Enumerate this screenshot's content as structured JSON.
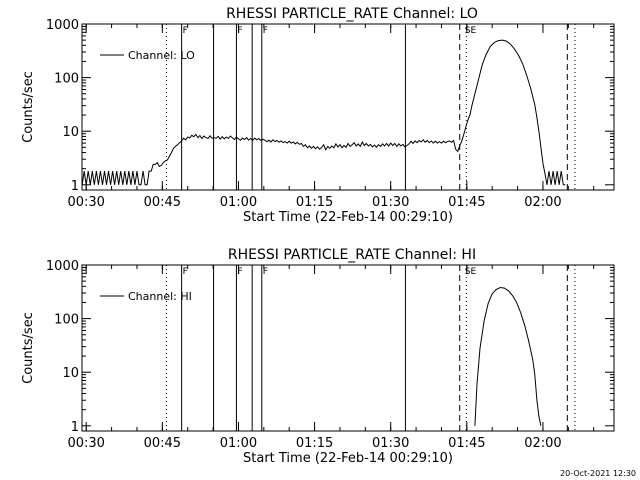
{
  "footer": {
    "timestamp": "20-Oct-2021 12:30"
  },
  "chart_data": [
    {
      "type": "line",
      "title": "RHESSI PARTICLE_RATE Channel: LO",
      "xlabel": "Start Time (22-Feb-14 00:29:10)",
      "ylabel": "Counts/sec",
      "yscale": "log",
      "xlim": [
        29.17,
        134.0
      ],
      "ylim": [
        0.8,
        1000
      ],
      "x_ticks": [
        30,
        45,
        60,
        75,
        90,
        105,
        120
      ],
      "x_tick_labels": [
        "00:30",
        "00:45",
        "01:00",
        "01:15",
        "01:30",
        "01:45",
        "02:00"
      ],
      "y_ticks": [
        1,
        10,
        100,
        1000
      ],
      "y_tick_labels": [
        "1",
        "10",
        "100",
        "1000"
      ],
      "legend": {
        "position": "top-left",
        "entries": [
          "Channel: LO"
        ]
      },
      "markers": {
        "solid": [
          48.8,
          55.1,
          59.6,
          62.7,
          64.6,
          92.9
        ],
        "dotted": [
          45.8,
          104.9,
          126.3
        ],
        "dashed": [
          103.6,
          124.8
        ],
        "labels": [
          {
            "x": 48.8,
            "text": "F"
          },
          {
            "x": 59.6,
            "text": "F"
          },
          {
            "x": 64.6,
            "text": "F"
          },
          {
            "x": 104.4,
            "text": "SE"
          }
        ]
      },
      "series": [
        {
          "name": "Channel: LO",
          "points": [
            [
              29.2,
              1
            ],
            [
              29.6,
              1.8
            ],
            [
              30.0,
              1
            ],
            [
              30.4,
              1.8
            ],
            [
              30.8,
              1
            ],
            [
              31.2,
              1.8
            ],
            [
              31.6,
              1
            ],
            [
              32.0,
              1.8
            ],
            [
              32.4,
              1
            ],
            [
              32.8,
              1.8
            ],
            [
              33.2,
              1
            ],
            [
              33.6,
              1.8
            ],
            [
              34.0,
              1
            ],
            [
              34.4,
              1.8
            ],
            [
              34.8,
              1
            ],
            [
              35.2,
              1.8
            ],
            [
              35.6,
              1
            ],
            [
              36.0,
              1.8
            ],
            [
              36.4,
              1
            ],
            [
              36.8,
              1.8
            ],
            [
              37.2,
              1
            ],
            [
              37.6,
              1.8
            ],
            [
              38.0,
              1
            ],
            [
              38.4,
              1.8
            ],
            [
              38.8,
              1
            ],
            [
              39.2,
              1.8
            ],
            [
              39.6,
              1
            ],
            [
              40.0,
              1.8
            ],
            [
              40.4,
              1
            ],
            [
              40.8,
              1
            ],
            [
              41.2,
              1.8
            ],
            [
              41.6,
              1
            ],
            [
              42.0,
              1
            ],
            [
              42.4,
              1.8
            ],
            [
              42.8,
              1.8
            ],
            [
              43.2,
              2.4
            ],
            [
              43.6,
              2.4
            ],
            [
              44.0,
              2.6
            ],
            [
              44.4,
              2.2
            ],
            [
              44.8,
              2.3
            ],
            [
              45.2,
              2.6
            ],
            [
              45.6,
              2.8
            ],
            [
              46.0,
              2.9
            ],
            [
              46.4,
              3.4
            ],
            [
              46.8,
              4.0
            ],
            [
              47.2,
              4.8
            ],
            [
              47.6,
              5.2
            ],
            [
              48.0,
              5.6
            ],
            [
              48.4,
              6.1
            ],
            [
              48.8,
              6.6
            ],
            [
              49.2,
              7.4
            ],
            [
              49.6,
              6.9
            ],
            [
              50.0,
              7.8
            ],
            [
              50.4,
              7.5
            ],
            [
              50.8,
              8.4
            ],
            [
              51.2,
              7.9
            ],
            [
              51.6,
              8.7
            ],
            [
              52.0,
              7.6
            ],
            [
              52.4,
              8.3
            ],
            [
              52.8,
              7.3
            ],
            [
              53.2,
              8.1
            ],
            [
              53.6,
              7.6
            ],
            [
              54.0,
              7.3
            ],
            [
              54.4,
              8.2
            ],
            [
              54.8,
              7.4
            ],
            [
              55.2,
              7.6
            ],
            [
              55.6,
              7.4
            ],
            [
              56.0,
              8.0
            ],
            [
              56.4,
              7.1
            ],
            [
              56.8,
              7.9
            ],
            [
              57.2,
              7.2
            ],
            [
              57.6,
              7.8
            ],
            [
              58.0,
              7.3
            ],
            [
              58.4,
              8.1
            ],
            [
              58.8,
              7.5
            ],
            [
              59.2,
              7.0
            ],
            [
              59.6,
              7.8
            ],
            [
              60.0,
              7.2
            ],
            [
              60.4,
              6.8
            ],
            [
              60.8,
              7.4
            ],
            [
              61.2,
              7.0
            ],
            [
              61.6,
              7.6
            ],
            [
              62.0,
              6.8
            ],
            [
              62.4,
              7.3
            ],
            [
              62.8,
              6.8
            ],
            [
              63.2,
              7.4
            ],
            [
              63.6,
              6.9
            ],
            [
              64.0,
              7.3
            ],
            [
              64.4,
              6.7
            ],
            [
              64.8,
              7.1
            ],
            [
              65.2,
              6.8
            ],
            [
              65.6,
              6.4
            ],
            [
              66.0,
              6.8
            ],
            [
              66.4,
              6.3
            ],
            [
              66.8,
              6.9
            ],
            [
              67.2,
              6.4
            ],
            [
              67.6,
              6.7
            ],
            [
              68.0,
              6.2
            ],
            [
              68.4,
              6.6
            ],
            [
              68.8,
              6.1
            ],
            [
              69.2,
              6.4
            ],
            [
              69.6,
              6.0
            ],
            [
              70.0,
              6.5
            ],
            [
              70.4,
              6.0
            ],
            [
              70.8,
              6.3
            ],
            [
              71.2,
              5.8
            ],
            [
              71.6,
              6.2
            ],
            [
              72.0,
              5.7
            ],
            [
              72.4,
              5.9
            ],
            [
              72.8,
              5.2
            ],
            [
              73.2,
              5.6
            ],
            [
              73.6,
              4.9
            ],
            [
              74.0,
              5.3
            ],
            [
              74.4,
              4.8
            ],
            [
              74.8,
              5.2
            ],
            [
              75.2,
              4.7
            ],
            [
              75.6,
              5.1
            ],
            [
              76.0,
              4.6
            ],
            [
              76.4,
              5.0
            ],
            [
              76.8,
              5.6
            ],
            [
              77.2,
              4.5
            ],
            [
              77.6,
              5.2
            ],
            [
              78.0,
              4.8
            ],
            [
              78.4,
              5.3
            ],
            [
              78.8,
              4.9
            ],
            [
              79.2,
              5.8
            ],
            [
              79.6,
              5.1
            ],
            [
              80.0,
              5.6
            ],
            [
              80.4,
              4.9
            ],
            [
              80.8,
              5.4
            ],
            [
              81.2,
              5.0
            ],
            [
              81.6,
              5.9
            ],
            [
              82.0,
              5.2
            ],
            [
              82.4,
              5.6
            ],
            [
              82.8,
              6.1
            ],
            [
              83.2,
              5.3
            ],
            [
              83.6,
              5.8
            ],
            [
              84.0,
              5.2
            ],
            [
              84.4,
              6.3
            ],
            [
              84.8,
              5.4
            ],
            [
              85.2,
              5.9
            ],
            [
              85.6,
              5.3
            ],
            [
              86.0,
              5.7
            ],
            [
              86.4,
              5.1
            ],
            [
              86.8,
              5.5
            ],
            [
              87.2,
              5.0
            ],
            [
              87.6,
              5.6
            ],
            [
              88.0,
              5.2
            ],
            [
              88.4,
              5.8
            ],
            [
              88.8,
              5.3
            ],
            [
              89.2,
              5.9
            ],
            [
              89.6,
              5.3
            ],
            [
              90.0,
              6.0
            ],
            [
              90.4,
              5.4
            ],
            [
              90.8,
              5.9
            ],
            [
              91.2,
              5.2
            ],
            [
              91.6,
              5.8
            ],
            [
              92.0,
              5.3
            ],
            [
              92.4,
              5.7
            ],
            [
              92.8,
              5.1
            ],
            [
              93.2,
              5.4
            ],
            [
              93.6,
              5.8
            ],
            [
              94.0,
              6.5
            ],
            [
              94.4,
              5.9
            ],
            [
              94.8,
              6.6
            ],
            [
              95.2,
              6.1
            ],
            [
              95.6,
              6.7
            ],
            [
              96.0,
              6.3
            ],
            [
              96.4,
              6.9
            ],
            [
              96.8,
              6.2
            ],
            [
              97.2,
              6.7
            ],
            [
              97.6,
              6.1
            ],
            [
              98.0,
              6.6
            ],
            [
              98.4,
              6.0
            ],
            [
              98.8,
              6.5
            ],
            [
              99.2,
              6.0
            ],
            [
              99.6,
              6.4
            ],
            [
              100.0,
              6.0
            ],
            [
              100.4,
              6.5
            ],
            [
              100.8,
              6.1
            ],
            [
              101.2,
              6.4
            ],
            [
              101.6,
              6.6
            ],
            [
              102.0,
              6.2
            ],
            [
              102.4,
              6.7
            ],
            [
              102.8,
              4.6
            ],
            [
              103.2,
              4.2
            ],
            [
              103.6,
              5.3
            ],
            [
              104.0,
              6.6
            ],
            [
              104.4,
              8.7
            ],
            [
              104.8,
              12
            ],
            [
              105.2,
              16
            ],
            [
              105.6,
              20
            ],
            [
              106.0,
              30
            ],
            [
              106.4,
              42
            ],
            [
              106.8,
              60
            ],
            [
              107.4,
              100
            ],
            [
              108.0,
              170
            ],
            [
              108.8,
              270
            ],
            [
              109.6,
              380
            ],
            [
              110.4,
              450
            ],
            [
              111.2,
              490
            ],
            [
              112.0,
              500
            ],
            [
              112.8,
              480
            ],
            [
              113.6,
              420
            ],
            [
              114.4,
              340
            ],
            [
              115.2,
              260
            ],
            [
              116.0,
              180
            ],
            [
              116.8,
              110
            ],
            [
              117.6,
              62
            ],
            [
              118.4,
              31
            ],
            [
              118.8,
              18
            ],
            [
              119.2,
              10
            ],
            [
              119.6,
              5
            ],
            [
              120.0,
              2.5
            ],
            [
              120.4,
              1.6
            ],
            [
              120.8,
              1
            ],
            [
              121.2,
              1.8
            ],
            [
              121.6,
              1
            ],
            [
              122.0,
              1.8
            ],
            [
              122.4,
              1
            ],
            [
              122.8,
              1.8
            ],
            [
              123.2,
              1
            ],
            [
              123.6,
              1.8
            ],
            [
              124.0,
              1
            ],
            [
              124.4,
              1
            ]
          ]
        }
      ]
    },
    {
      "type": "line",
      "title": "RHESSI PARTICLE_RATE Channel: HI",
      "xlabel": "Start Time (22-Feb-14 00:29:10)",
      "ylabel": "Counts/sec",
      "yscale": "log",
      "xlim": [
        29.17,
        134.0
      ],
      "ylim": [
        0.8,
        1000
      ],
      "x_ticks": [
        30,
        45,
        60,
        75,
        90,
        105,
        120
      ],
      "x_tick_labels": [
        "00:30",
        "00:45",
        "01:00",
        "01:15",
        "01:30",
        "01:45",
        "02:00"
      ],
      "y_ticks": [
        1,
        10,
        100,
        1000
      ],
      "y_tick_labels": [
        "1",
        "10",
        "100",
        "1000"
      ],
      "legend": {
        "position": "top-left",
        "entries": [
          "Channel: HI"
        ]
      },
      "markers": {
        "solid": [
          48.8,
          55.1,
          59.6,
          62.7,
          64.6,
          92.9
        ],
        "dotted": [
          45.8,
          104.9,
          126.3
        ],
        "dashed": [
          103.6,
          124.8
        ],
        "labels": [
          {
            "x": 48.8,
            "text": "F"
          },
          {
            "x": 59.6,
            "text": "F"
          },
          {
            "x": 64.6,
            "text": "F"
          },
          {
            "x": 104.4,
            "text": "SE"
          }
        ]
      },
      "series": [
        {
          "name": "Channel: HI",
          "points": [
            [
              106.6,
              1
            ],
            [
              107.0,
              6
            ],
            [
              107.6,
              28
            ],
            [
              108.4,
              90
            ],
            [
              109.2,
              190
            ],
            [
              110.0,
              290
            ],
            [
              110.8,
              350
            ],
            [
              111.6,
              380
            ],
            [
              112.4,
              370
            ],
            [
              113.2,
              330
            ],
            [
              114.0,
              270
            ],
            [
              114.8,
              200
            ],
            [
              115.6,
              130
            ],
            [
              116.4,
              75
            ],
            [
              117.2,
              38
            ],
            [
              118.0,
              17
            ],
            [
              118.4,
              9
            ],
            [
              118.8,
              3
            ],
            [
              119.2,
              1.5
            ],
            [
              119.6,
              1
            ]
          ]
        }
      ]
    }
  ]
}
